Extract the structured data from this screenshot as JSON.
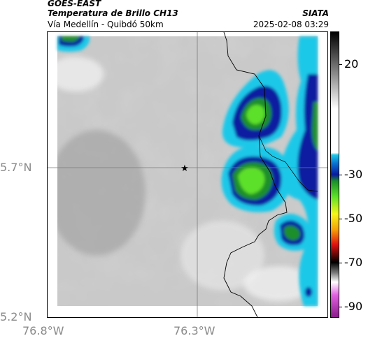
{
  "header": {
    "satellite": "GOES-EAST",
    "product": "Temperatura de Brillo CH13",
    "subtitle": "Vía Medellín - Quibdó 50km",
    "organization": "SIATA",
    "datetime": "2025-02-08 03:29"
  },
  "map": {
    "lat_labels": [
      "5.7°N",
      "5.2°N"
    ],
    "lon_labels": [
      "76.8°W",
      "76.3°W"
    ],
    "marker_icon": "star-icon"
  },
  "colorbar": {
    "tick_labels": [
      "20",
      "-30",
      "-50",
      "-70",
      "-90"
    ],
    "tick_values": [
      20,
      -30,
      -50,
      -70,
      -90
    ],
    "range": [
      -95,
      35
    ],
    "stops": [
      {
        "v": 35,
        "c": "#000000"
      },
      {
        "v": 0,
        "c": "#ffffff"
      },
      {
        "v": -20,
        "c": "#ffffff"
      },
      {
        "v": -21,
        "c": "#1ec8e8"
      },
      {
        "v": -25,
        "c": "#0a6fd0"
      },
      {
        "v": -30,
        "c": "#0a1aa0"
      },
      {
        "v": -33,
        "c": "#1a8f2a"
      },
      {
        "v": -40,
        "c": "#5de02a"
      },
      {
        "v": -48,
        "c": "#f6f51a"
      },
      {
        "v": -55,
        "c": "#f5a20a"
      },
      {
        "v": -62,
        "c": "#e01010"
      },
      {
        "v": -70,
        "c": "#000000"
      },
      {
        "v": -75,
        "c": "#808080"
      },
      {
        "v": -79,
        "c": "#ffffff"
      },
      {
        "v": -85,
        "c": "#e060e0"
      },
      {
        "v": -95,
        "c": "#8a1a8a"
      }
    ]
  }
}
